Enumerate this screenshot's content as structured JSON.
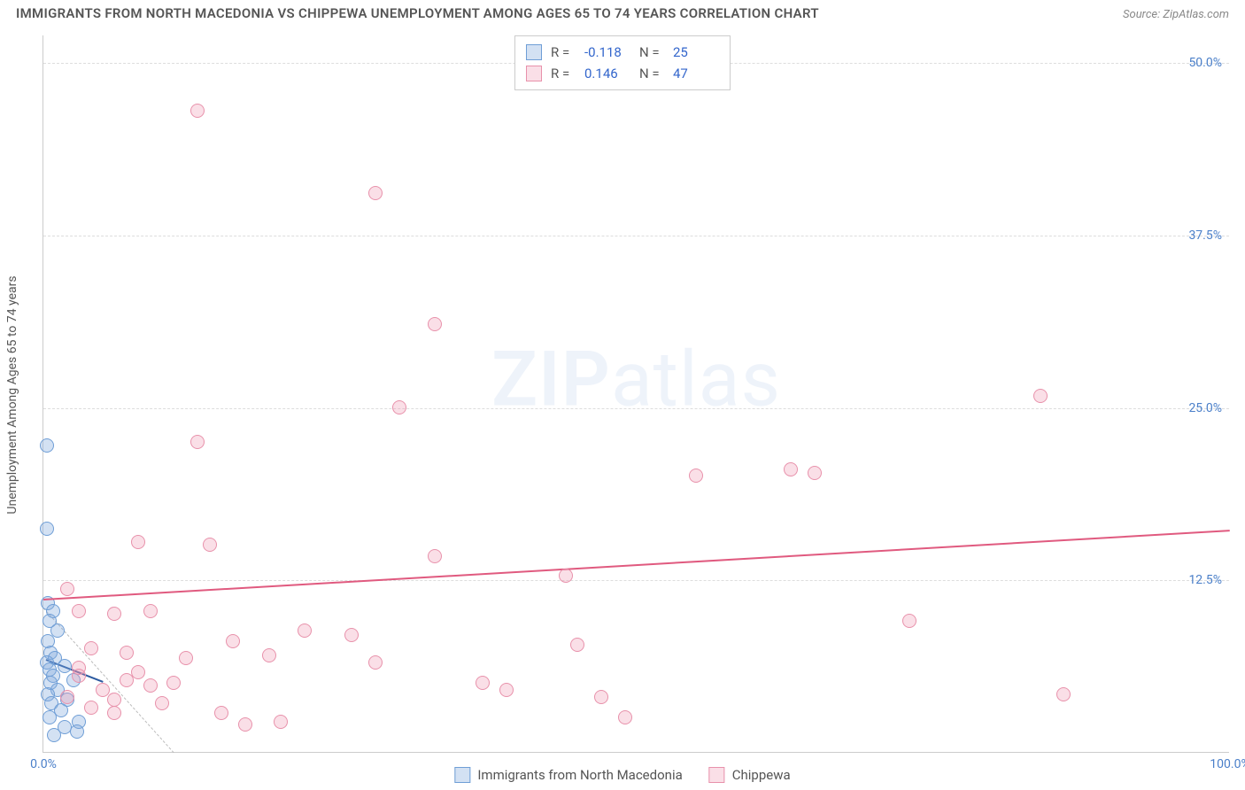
{
  "title": "IMMIGRANTS FROM NORTH MACEDONIA VS CHIPPEWA UNEMPLOYMENT AMONG AGES 65 TO 74 YEARS CORRELATION CHART",
  "source": "Source: ZipAtlas.com",
  "watermark_a": "ZIP",
  "watermark_b": "atlas",
  "ylabel": "Unemployment Among Ages 65 to 74 years",
  "chart": {
    "type": "scatter",
    "xlim": [
      0,
      100
    ],
    "ylim": [
      0,
      52
    ],
    "xticks": [
      {
        "v": 0,
        "label": "0.0%"
      },
      {
        "v": 100,
        "label": "100.0%"
      }
    ],
    "yticks": [
      {
        "v": 12.5,
        "label": "12.5%"
      },
      {
        "v": 25,
        "label": "25.0%"
      },
      {
        "v": 37.5,
        "label": "37.5%"
      },
      {
        "v": 50,
        "label": "50.0%"
      }
    ],
    "background_color": "#ffffff",
    "grid_color": "#dddddd",
    "axis_color": "#cccccc",
    "tick_color": "#4a7fc9"
  },
  "series": [
    {
      "name": "Immigrants from North Macedonia",
      "fill": "rgba(130,170,220,0.35)",
      "stroke": "#6f9ed6",
      "R": "-0.118",
      "N": "25",
      "trend": {
        "x1": 0.2,
        "y1": 6.8,
        "x2": 5,
        "y2": 5.2,
        "color": "#2c5aa0"
      },
      "points": [
        {
          "x": 0.3,
          "y": 22.2
        },
        {
          "x": 0.3,
          "y": 16.2
        },
        {
          "x": 0.4,
          "y": 10.8
        },
        {
          "x": 0.8,
          "y": 10.2
        },
        {
          "x": 0.5,
          "y": 9.5
        },
        {
          "x": 1.2,
          "y": 8.8
        },
        {
          "x": 0.4,
          "y": 8.0
        },
        {
          "x": 0.6,
          "y": 7.2
        },
        {
          "x": 1.0,
          "y": 6.8
        },
        {
          "x": 0.3,
          "y": 6.5
        },
        {
          "x": 1.8,
          "y": 6.2
        },
        {
          "x": 0.5,
          "y": 6.0
        },
        {
          "x": 0.8,
          "y": 5.5
        },
        {
          "x": 2.5,
          "y": 5.2
        },
        {
          "x": 0.6,
          "y": 5.0
        },
        {
          "x": 1.2,
          "y": 4.5
        },
        {
          "x": 0.4,
          "y": 4.2
        },
        {
          "x": 2.0,
          "y": 3.8
        },
        {
          "x": 0.7,
          "y": 3.5
        },
        {
          "x": 1.5,
          "y": 3.0
        },
        {
          "x": 0.5,
          "y": 2.5
        },
        {
          "x": 3.0,
          "y": 2.2
        },
        {
          "x": 1.8,
          "y": 1.8
        },
        {
          "x": 2.8,
          "y": 1.5
        },
        {
          "x": 0.9,
          "y": 1.2
        }
      ]
    },
    {
      "name": "Chippewa",
      "fill": "rgba(240,150,175,0.30)",
      "stroke": "#e891ab",
      "R": "0.146",
      "N": "47",
      "trend": {
        "x1": 0,
        "y1": 11.2,
        "x2": 100,
        "y2": 16.2,
        "color": "#e05a7f"
      },
      "points": [
        {
          "x": 13,
          "y": 46.5
        },
        {
          "x": 28,
          "y": 40.5
        },
        {
          "x": 33,
          "y": 31.0
        },
        {
          "x": 84,
          "y": 25.8
        },
        {
          "x": 30,
          "y": 25.0
        },
        {
          "x": 13,
          "y": 22.5
        },
        {
          "x": 63,
          "y": 20.5
        },
        {
          "x": 65,
          "y": 20.2
        },
        {
          "x": 55,
          "y": 20.0
        },
        {
          "x": 8,
          "y": 15.2
        },
        {
          "x": 14,
          "y": 15.0
        },
        {
          "x": 33,
          "y": 14.2
        },
        {
          "x": 44,
          "y": 12.8
        },
        {
          "x": 2,
          "y": 11.8
        },
        {
          "x": 3,
          "y": 10.2
        },
        {
          "x": 6,
          "y": 10.0
        },
        {
          "x": 9,
          "y": 10.2
        },
        {
          "x": 73,
          "y": 9.5
        },
        {
          "x": 22,
          "y": 8.8
        },
        {
          "x": 26,
          "y": 8.5
        },
        {
          "x": 16,
          "y": 8.0
        },
        {
          "x": 45,
          "y": 7.8
        },
        {
          "x": 4,
          "y": 7.5
        },
        {
          "x": 7,
          "y": 7.2
        },
        {
          "x": 19,
          "y": 7.0
        },
        {
          "x": 12,
          "y": 6.8
        },
        {
          "x": 28,
          "y": 6.5
        },
        {
          "x": 3,
          "y": 6.1
        },
        {
          "x": 37,
          "y": 5.0
        },
        {
          "x": 39,
          "y": 4.5
        },
        {
          "x": 86,
          "y": 4.2
        },
        {
          "x": 47,
          "y": 4.0
        },
        {
          "x": 6,
          "y": 3.8
        },
        {
          "x": 10,
          "y": 3.5
        },
        {
          "x": 15,
          "y": 2.8
        },
        {
          "x": 49,
          "y": 2.5
        },
        {
          "x": 20,
          "y": 2.2
        },
        {
          "x": 17,
          "y": 2.0
        },
        {
          "x": 3,
          "y": 5.5
        },
        {
          "x": 5,
          "y": 4.5
        },
        {
          "x": 8,
          "y": 5.8
        },
        {
          "x": 11,
          "y": 5.0
        },
        {
          "x": 2,
          "y": 4.0
        },
        {
          "x": 4,
          "y": 3.2
        },
        {
          "x": 6,
          "y": 2.8
        },
        {
          "x": 9,
          "y": 4.8
        },
        {
          "x": 7,
          "y": 5.2
        }
      ]
    }
  ],
  "legend": {
    "r_label": "R =",
    "n_label": "N ="
  }
}
